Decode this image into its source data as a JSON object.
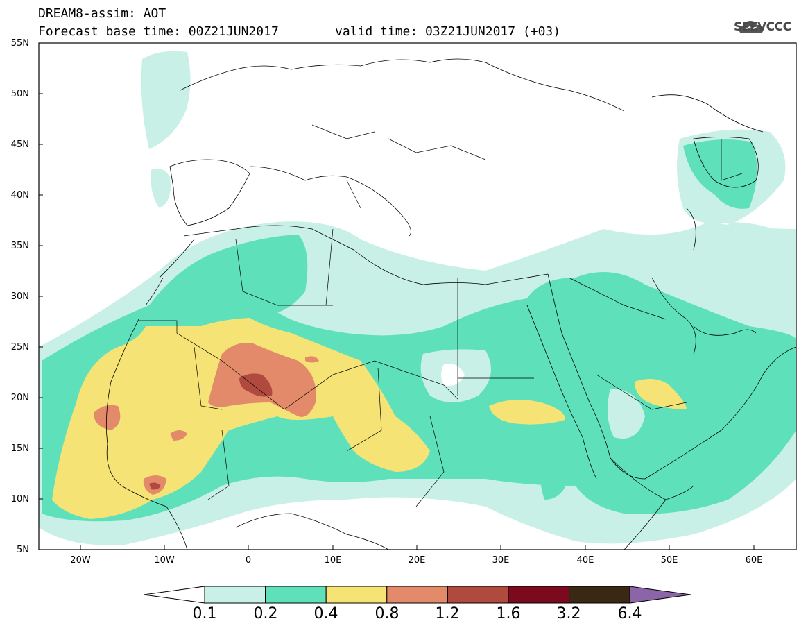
{
  "header": {
    "title": "DREAM8-assim: AOT",
    "base_time": "Forecast base time: 00Z21JUN2017",
    "valid_time": "valid time: 03Z21JUN2017 (+03)"
  },
  "logo": {
    "text": "SEEVCCC",
    "icon": "cloud-logo-icon"
  },
  "axes": {
    "lat_labels": [
      "55N",
      "50N",
      "45N",
      "40N",
      "35N",
      "30N",
      "25N",
      "20N",
      "15N",
      "10N",
      "5N"
    ],
    "lon_labels": [
      "20W",
      "10W",
      "0",
      "10E",
      "20E",
      "30E",
      "40E",
      "50E",
      "60E"
    ],
    "lon_range": [
      -25,
      65
    ],
    "lat_range": [
      5,
      55
    ]
  },
  "colorbar": {
    "labels": [
      "0.1",
      "0.2",
      "0.4",
      "0.8",
      "1.2",
      "1.6",
      "3.2",
      "6.4"
    ],
    "colors": [
      "#c8f0e6",
      "#5ee1bb",
      "#f5e475",
      "#e28a69",
      "#b04a3e",
      "#7c0a1e",
      "#3a2814",
      "#8c64a8"
    ]
  },
  "colors": {
    "water": "#ffffff",
    "land_border": "#000000"
  }
}
